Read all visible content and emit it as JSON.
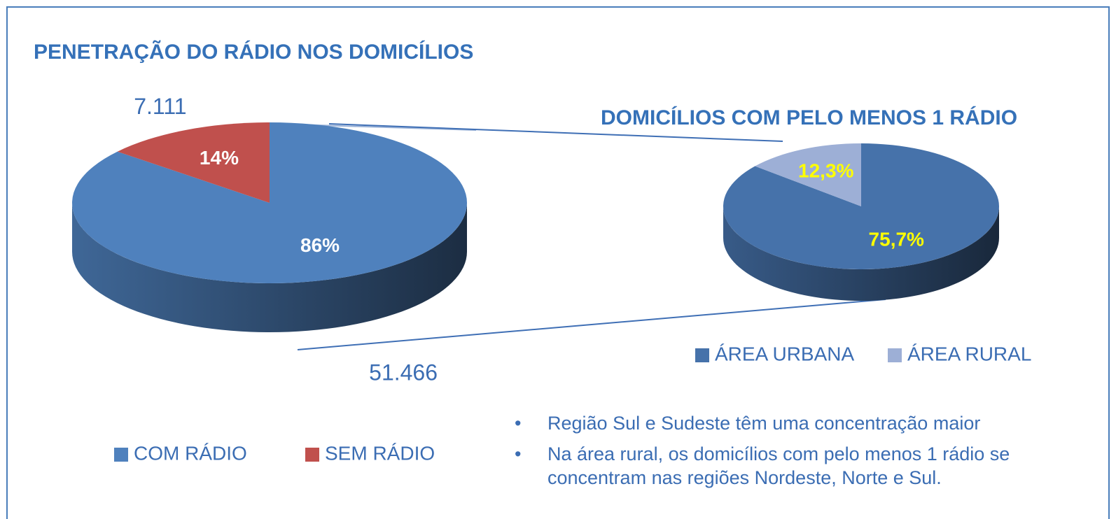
{
  "chart_data": [
    {
      "type": "pie",
      "title": "PENETRAÇÃO DO RÁDIO NOS DOMICÍLIOS",
      "categories": [
        "COM RÁDIO",
        "SEM RÁDIO"
      ],
      "values": [
        86,
        14
      ],
      "value_labels": [
        "86%",
        "14%"
      ],
      "counts": [
        51466,
        7111
      ],
      "count_labels": [
        "51.466",
        "7.111"
      ],
      "colors": [
        "#4f81bd",
        "#c0504d"
      ],
      "label_color": "#ffffff",
      "legend": "bottom"
    },
    {
      "type": "pie",
      "title": "DOMICÍLIOS COM PELO MENOS 1 RÁDIO",
      "categories": [
        "ÁREA URBANA",
        "ÁREA RURAL"
      ],
      "values": [
        75.7,
        12.3
      ],
      "value_labels": [
        "75,7%",
        "12,3%"
      ],
      "colors": [
        "#4672aa",
        "#9dafd6"
      ],
      "label_color": "#ffff00",
      "legend": "bottom"
    }
  ],
  "notes": [
    "Região Sul e Sudeste têm uma concentração maior",
    "Na área rural, os domicílios com pelo menos 1 rádio se concentram nas regiões Nordeste, Norte e Sul."
  ]
}
